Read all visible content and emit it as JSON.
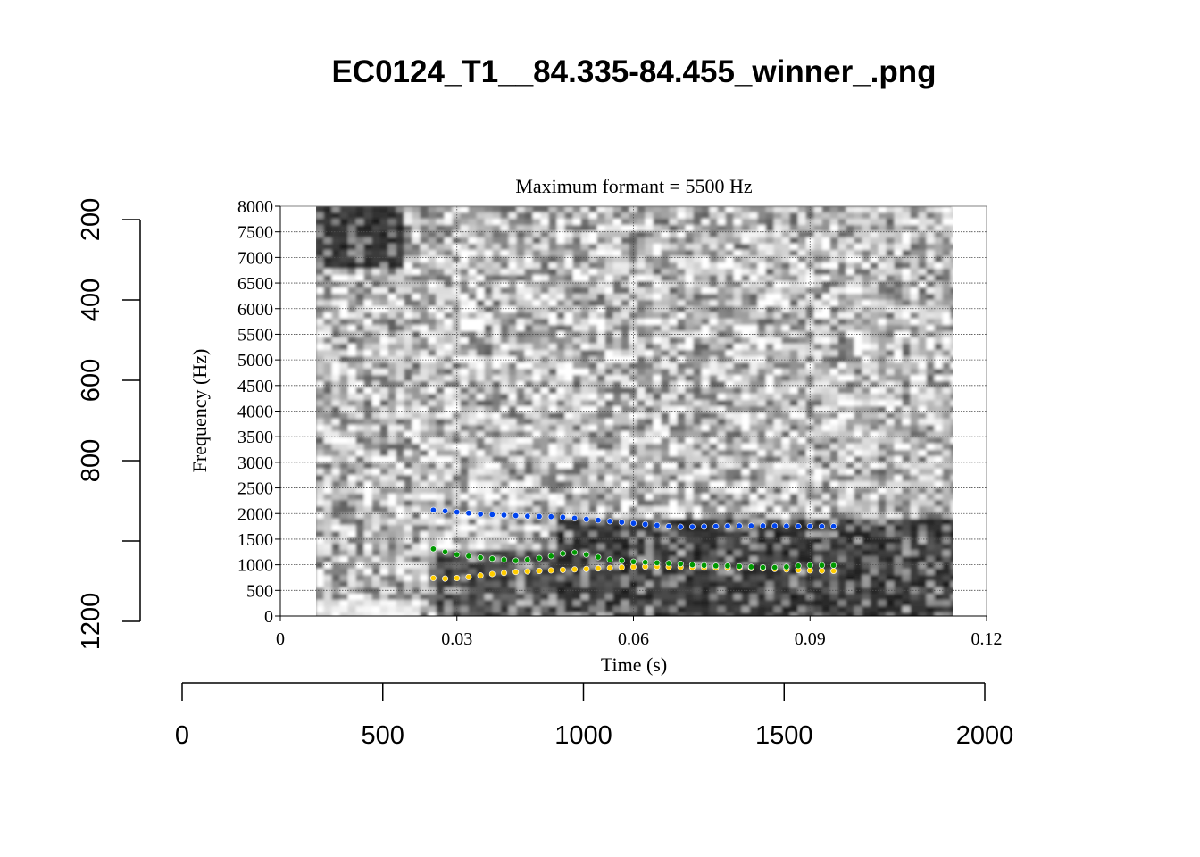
{
  "page_title": "EC0124_T1__84.335-84.455_winner_.png",
  "chart_data": {
    "type": "scatter",
    "title": "Maximum formant = 5500 Hz",
    "xlabel": "Time (s)",
    "ylabel": "Frequency (Hz)",
    "xlim": [
      0,
      0.12
    ],
    "ylim": [
      0,
      8000
    ],
    "x_ticks": [
      "0",
      "0.03",
      "0.06",
      "0.09",
      "0.12"
    ],
    "x_tick_values": [
      0,
      0.03,
      0.06,
      0.09,
      0.12
    ],
    "y_ticks": [
      "0",
      "500",
      "1000",
      "1500",
      "2000",
      "2500",
      "3000",
      "3500",
      "4000",
      "4500",
      "5000",
      "5500",
      "6000",
      "6500",
      "7000",
      "7500",
      "8000"
    ],
    "y_tick_values": [
      0,
      500,
      1000,
      1500,
      2000,
      2500,
      3000,
      3500,
      4000,
      4500,
      5000,
      5500,
      6000,
      6500,
      7000,
      7500,
      8000
    ],
    "grid": true,
    "spectrogram_time_range": [
      0.006,
      0.114
    ],
    "series": [
      {
        "color": "#ffcc00",
        "x": [
          0.026,
          0.028,
          0.03,
          0.032,
          0.034,
          0.036,
          0.038,
          0.04,
          0.042,
          0.044,
          0.046,
          0.048,
          0.05,
          0.052,
          0.054,
          0.056,
          0.058,
          0.06,
          0.062,
          0.064,
          0.066,
          0.068,
          0.07,
          0.072,
          0.074,
          0.076,
          0.078,
          0.08,
          0.082,
          0.084,
          0.086,
          0.088,
          0.09,
          0.092,
          0.094
        ],
        "y": [
          740,
          730,
          740,
          760,
          790,
          820,
          840,
          860,
          870,
          880,
          890,
          900,
          910,
          920,
          930,
          940,
          950,
          960,
          965,
          965,
          960,
          955,
          950,
          945,
          945,
          940,
          940,
          935,
          930,
          920,
          910,
          900,
          890,
          885,
          880
        ]
      },
      {
        "color": "#009900",
        "x": [
          0.026,
          0.028,
          0.03,
          0.032,
          0.034,
          0.036,
          0.038,
          0.04,
          0.042,
          0.044,
          0.046,
          0.048,
          0.05,
          0.052,
          0.054,
          0.056,
          0.058,
          0.06,
          0.062,
          0.064,
          0.066,
          0.068,
          0.07,
          0.072,
          0.074,
          0.076,
          0.078,
          0.08,
          0.082,
          0.084,
          0.086,
          0.088,
          0.09,
          0.092,
          0.094
        ],
        "y": [
          1310,
          1250,
          1200,
          1170,
          1140,
          1120,
          1100,
          1080,
          1100,
          1130,
          1170,
          1220,
          1240,
          1200,
          1150,
          1100,
          1080,
          1060,
          1050,
          1040,
          1030,
          1020,
          1000,
          990,
          980,
          980,
          970,
          960,
          950,
          950,
          960,
          980,
          990,
          990,
          990
        ]
      },
      {
        "color": "#0044ee",
        "x": [
          0.026,
          0.028,
          0.03,
          0.032,
          0.034,
          0.036,
          0.038,
          0.04,
          0.042,
          0.044,
          0.046,
          0.048,
          0.05,
          0.052,
          0.054,
          0.056,
          0.058,
          0.06,
          0.062,
          0.064,
          0.066,
          0.068,
          0.07,
          0.072,
          0.074,
          0.076,
          0.078,
          0.08,
          0.082,
          0.084,
          0.086,
          0.088,
          0.09,
          0.092,
          0.094
        ],
        "y": [
          2070,
          2050,
          2030,
          2010,
          1990,
          1980,
          1970,
          1960,
          1950,
          1945,
          1940,
          1930,
          1910,
          1890,
          1870,
          1850,
          1830,
          1810,
          1790,
          1770,
          1750,
          1740,
          1740,
          1745,
          1750,
          1755,
          1760,
          1760,
          1760,
          1760,
          1755,
          1750,
          1750,
          1750,
          1750
        ]
      }
    ]
  },
  "outer_axes": {
    "bottom_ticks": [
      "0",
      "500",
      "1000",
      "1500",
      "2000"
    ],
    "bottom_values": [
      0,
      500,
      1000,
      1500,
      2000
    ],
    "bottom_range": [
      0,
      2000
    ],
    "left_ticks": [
      "200",
      "400",
      "600",
      "800",
      "1200"
    ],
    "left_values": [
      200,
      400,
      600,
      800,
      1200
    ],
    "left_range": [
      200,
      1200
    ],
    "left_tick_marks": [
      200,
      400,
      600,
      800,
      1000,
      1200
    ]
  }
}
